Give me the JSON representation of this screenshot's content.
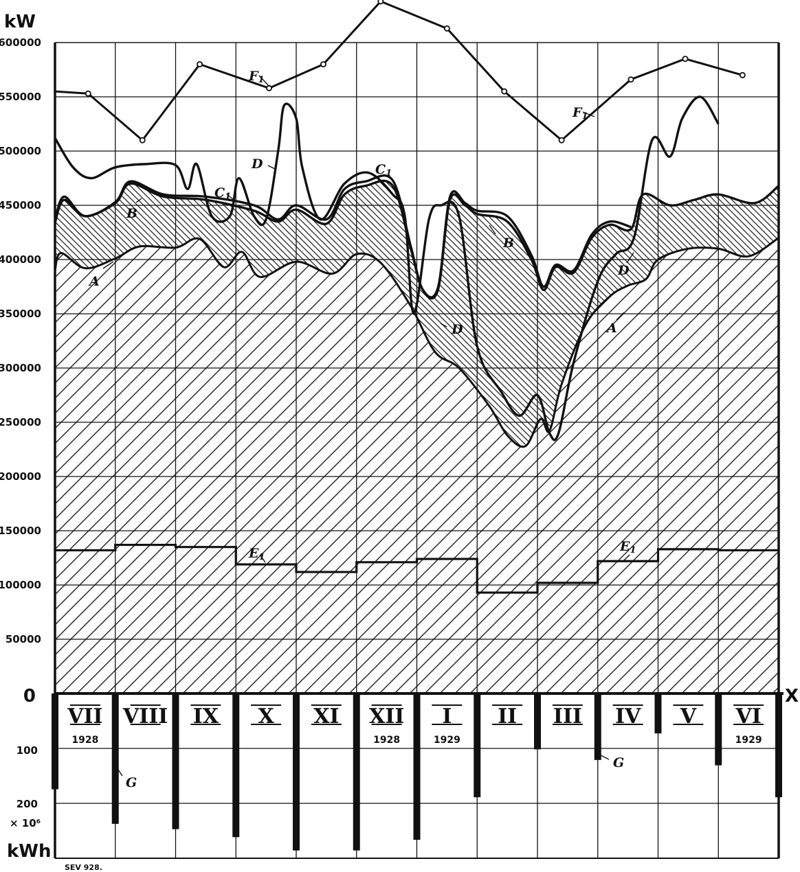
{
  "chart_data": {
    "type": "line",
    "y_unit": "kW",
    "y_ticks": [
      0,
      50000,
      100000,
      150000,
      200000,
      250000,
      300000,
      350000,
      400000,
      450000,
      500000,
      550000,
      600000
    ],
    "y_tick_labels": [
      "0",
      "50000",
      "100000",
      "150000",
      "200000",
      "250000",
      "300000",
      "350000",
      "400000",
      "450000",
      "500000",
      "550000",
      "600000"
    ],
    "ylim": [
      0,
      600000
    ],
    "x_axis_label": "X",
    "months": [
      {
        "label": "VII",
        "year": "1928"
      },
      {
        "label": "VIII",
        "year": ""
      },
      {
        "label": "IX",
        "year": ""
      },
      {
        "label": "X",
        "year": ""
      },
      {
        "label": "XI",
        "year": ""
      },
      {
        "label": "XII",
        "year": "1928"
      },
      {
        "label": "I",
        "year": "1929"
      },
      {
        "label": "II",
        "year": ""
      },
      {
        "label": "III",
        "year": ""
      },
      {
        "label": "IV",
        "year": ""
      },
      {
        "label": "V",
        "year": ""
      },
      {
        "label": "VI",
        "year": "1929"
      }
    ],
    "lower_axis_ticks": [
      "0",
      "100",
      "200"
    ],
    "lower_axis_unit_lines": [
      "× 10⁶",
      "kWh"
    ],
    "energy_bars_G": [
      180,
      245,
      255,
      270,
      295,
      295,
      275,
      195,
      105,
      125,
      75,
      135,
      195
    ],
    "series": [
      {
        "name": "F1",
        "values": [
          [
            0.0,
            555000
          ],
          [
            0.55,
            553000
          ],
          [
            1.45,
            510000
          ],
          [
            2.4,
            580000
          ],
          [
            3.55,
            558000
          ],
          [
            4.45,
            580000
          ],
          [
            5.4,
            638000
          ],
          [
            6.5,
            613000
          ],
          [
            7.45,
            555000
          ],
          [
            8.4,
            510000
          ],
          [
            9.55,
            566000
          ],
          [
            10.45,
            585000
          ],
          [
            11.4,
            570000
          ]
        ]
      },
      {
        "name": "E1",
        "values": [
          [
            0,
            132000
          ],
          [
            1,
            137000
          ],
          [
            2,
            135000
          ],
          [
            3,
            119000
          ],
          [
            4,
            112000
          ],
          [
            5,
            121000
          ],
          [
            6,
            124000
          ],
          [
            7,
            93000
          ],
          [
            8,
            102000
          ],
          [
            9,
            122000
          ],
          [
            10,
            133000
          ],
          [
            11,
            132000
          ],
          [
            12,
            132000
          ]
        ]
      },
      {
        "name": "A",
        "values": [
          [
            0,
            390000
          ],
          [
            0.1,
            406000
          ],
          [
            0.5,
            392000
          ],
          [
            1,
            401000
          ],
          [
            1.4,
            412000
          ],
          [
            2,
            411000
          ],
          [
            2.4,
            419000
          ],
          [
            2.8,
            393000
          ],
          [
            3.1,
            407000
          ],
          [
            3.4,
            384000
          ],
          [
            4,
            398000
          ],
          [
            4.6,
            387000
          ],
          [
            5,
            405000
          ],
          [
            5.4,
            397000
          ],
          [
            5.9,
            357000
          ],
          [
            6.3,
            315000
          ],
          [
            6.7,
            300000
          ],
          [
            7.2,
            265000
          ],
          [
            7.5,
            238000
          ],
          [
            7.8,
            228000
          ],
          [
            8.05,
            253000
          ],
          [
            8.2,
            242000
          ],
          [
            8.4,
            285000
          ],
          [
            8.8,
            340000
          ],
          [
            9.2,
            366000
          ],
          [
            9.5,
            376000
          ],
          [
            9.8,
            382000
          ],
          [
            10,
            400000
          ],
          [
            10.5,
            410000
          ],
          [
            11,
            410000
          ],
          [
            11.5,
            403000
          ],
          [
            12,
            420000
          ]
        ]
      },
      {
        "name": "B",
        "values": [
          [
            0,
            434000
          ],
          [
            0.15,
            455000
          ],
          [
            0.5,
            440000
          ],
          [
            1,
            452000
          ],
          [
            1.25,
            470000
          ],
          [
            1.8,
            458000
          ],
          [
            2.5,
            455000
          ],
          [
            3.3,
            445000
          ],
          [
            3.7,
            435000
          ],
          [
            4,
            446000
          ],
          [
            4.5,
            433000
          ],
          [
            4.8,
            460000
          ],
          [
            5.15,
            468000
          ],
          [
            5.6,
            468000
          ],
          [
            5.9,
            410000
          ],
          [
            6.1,
            372000
          ],
          [
            6.35,
            372000
          ],
          [
            6.55,
            455000
          ],
          [
            6.8,
            450000
          ],
          [
            7,
            442000
          ],
          [
            7.5,
            435000
          ],
          [
            7.9,
            400000
          ],
          [
            8.1,
            372000
          ],
          [
            8.3,
            393000
          ],
          [
            8.6,
            388000
          ],
          [
            8.9,
            420000
          ],
          [
            9.2,
            432000
          ],
          [
            9.55,
            428000
          ],
          [
            9.75,
            460000
          ],
          [
            10.2,
            450000
          ],
          [
            10.6,
            455000
          ],
          [
            11,
            460000
          ],
          [
            11.6,
            452000
          ],
          [
            12,
            468000
          ]
        ]
      },
      {
        "name": "C1",
        "values": [
          [
            0,
            436000
          ],
          [
            0.15,
            458000
          ],
          [
            0.5,
            440000
          ],
          [
            1,
            453000
          ],
          [
            1.25,
            472000
          ],
          [
            1.8,
            460000
          ],
          [
            2.5,
            458000
          ],
          [
            3.3,
            450000
          ],
          [
            3.7,
            437000
          ],
          [
            4,
            450000
          ],
          [
            4.5,
            437000
          ],
          [
            4.8,
            465000
          ],
          [
            5.15,
            472000
          ],
          [
            5.6,
            473000
          ],
          [
            5.9,
            412000
          ],
          [
            6.1,
            372000
          ],
          [
            6.35,
            374000
          ],
          [
            6.55,
            458000
          ],
          [
            6.8,
            452000
          ],
          [
            7,
            445000
          ],
          [
            7.5,
            440000
          ],
          [
            7.9,
            404000
          ],
          [
            8.1,
            375000
          ],
          [
            8.3,
            395000
          ],
          [
            8.6,
            390000
          ],
          [
            8.9,
            423000
          ],
          [
            9.2,
            435000
          ],
          [
            9.55,
            430000
          ]
        ]
      },
      {
        "name": "D",
        "values": [
          [
            0,
            512000
          ],
          [
            0.3,
            485000
          ],
          [
            0.6,
            475000
          ],
          [
            1,
            485000
          ],
          [
            1.5,
            488000
          ],
          [
            2,
            487000
          ],
          [
            2.2,
            465000
          ],
          [
            2.35,
            488000
          ],
          [
            2.6,
            440000
          ],
          [
            2.9,
            440000
          ],
          [
            3.05,
            475000
          ],
          [
            3.3,
            440000
          ],
          [
            3.5,
            437000
          ],
          [
            3.7,
            500000
          ],
          [
            3.8,
            542000
          ],
          [
            4,
            530000
          ],
          [
            4.1,
            485000
          ],
          [
            4.4,
            437000
          ],
          [
            4.8,
            470000
          ],
          [
            5.2,
            480000
          ],
          [
            5.6,
            460000
          ],
          [
            5.8,
            440000
          ],
          [
            5.95,
            350000
          ],
          [
            6.2,
            437000
          ],
          [
            6.4,
            450000
          ],
          [
            6.7,
            440000
          ],
          [
            7,
            320000
          ],
          [
            7.4,
            278000
          ],
          [
            7.7,
            256000
          ],
          [
            8,
            275000
          ],
          [
            8.2,
            240000
          ],
          [
            8.35,
            240000
          ],
          [
            8.6,
            305000
          ],
          [
            9,
            380000
          ],
          [
            9.3,
            405000
          ],
          [
            9.6,
            420000
          ],
          [
            9.9,
            510000
          ],
          [
            10.2,
            495000
          ],
          [
            10.4,
            530000
          ],
          [
            10.7,
            550000
          ],
          [
            11,
            525000
          ]
        ]
      }
    ],
    "curve_labels": [
      "F1",
      "F1",
      "D",
      "C1",
      "B",
      "A",
      "C1",
      "B",
      "D",
      "A",
      "D",
      "E1",
      "E1",
      "G",
      "G"
    ],
    "footer": "SEV 928."
  }
}
